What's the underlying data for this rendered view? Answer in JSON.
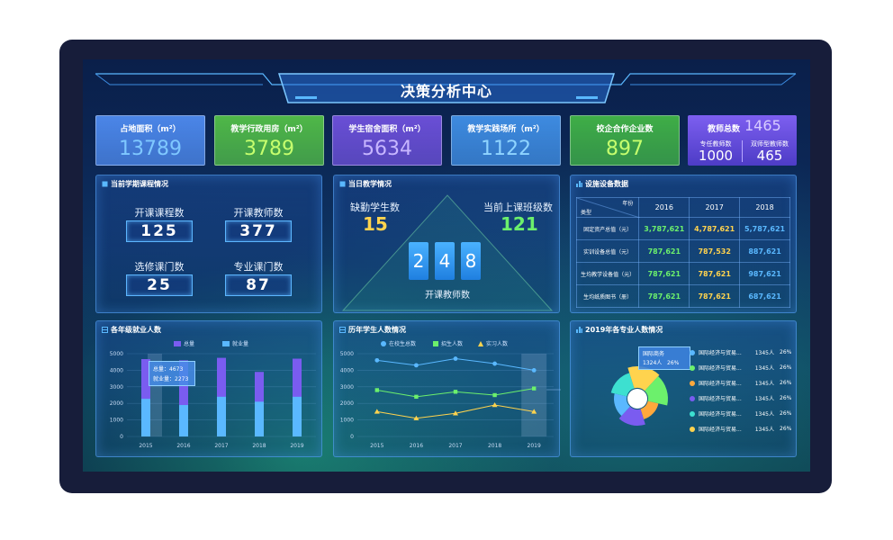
{
  "header": {
    "title": "决策分析中心"
  },
  "stats": [
    {
      "label": "占地面积（m²）",
      "value": "13789",
      "bg": "#4b86e8",
      "valueColor": "#7fc8ff"
    },
    {
      "label": "教学行政用房（m²）",
      "value": "3789",
      "bg": "#4fb848",
      "valueColor": "#c6ff6e"
    },
    {
      "label": "学生宿舍面积（m²）",
      "value": "5634",
      "bg": "#6a4fd6",
      "valueColor": "#c7b6ff"
    },
    {
      "label": "教学实践场所（m²）",
      "value": "1122",
      "bg": "#3e8be0",
      "valueColor": "#8fd4ff"
    },
    {
      "label": "校企合作企业数",
      "value": "897",
      "bg": "#3fae47",
      "valueColor": "#c6ff6e"
    }
  ],
  "teachers": {
    "label": "教师总数",
    "total": "1465",
    "full_label": "专任教师数",
    "full": "1000",
    "dual_label": "双师型教师数",
    "dual": "465"
  },
  "courses": {
    "title": "当前学期课程情况",
    "items": [
      {
        "label": "开课课程数",
        "value": "125"
      },
      {
        "label": "开课教师数",
        "value": "377"
      },
      {
        "label": "选修课门数",
        "value": "25"
      },
      {
        "label": "专业课门数",
        "value": "87"
      }
    ]
  },
  "daily": {
    "title": "当日教学情况",
    "absent_label": "缺勤学生数",
    "absent": "15",
    "classes_label": "当前上课班级数",
    "classes": "121",
    "digits": [
      "2",
      "4",
      "8"
    ],
    "teachers_label": "开课教师数"
  },
  "equipment": {
    "title": "设施设备数据",
    "corner_year": "年份",
    "corner_type": "类型",
    "years": [
      "2016",
      "2017",
      "2018"
    ],
    "rows": [
      {
        "name": "固定资产总值（元）",
        "values": [
          "3,787,621",
          "4,787,621",
          "5,787,621"
        ]
      },
      {
        "name": "实训设备总值（元）",
        "values": [
          "787,621",
          "787,532",
          "887,621"
        ]
      },
      {
        "name": "生均教学设备值（元）",
        "values": [
          "787,621",
          "787,621",
          "987,621"
        ]
      },
      {
        "name": "生均纸质图书（册）",
        "values": [
          "787,621",
          "787,621",
          "687,621"
        ]
      }
    ],
    "colors": [
      "#6cf06c",
      "#ffd34e",
      "#5ab8ff"
    ]
  },
  "employment": {
    "title": "各年级就业人数",
    "legend": [
      "总量",
      "就业量"
    ],
    "tooltip": {
      "total": "总量：4673",
      "employed": "就业量：2273"
    }
  },
  "history": {
    "title": "历年学生人数情况",
    "legend": [
      "在校生总数",
      "招生人数",
      "实习人数"
    ]
  },
  "majors": {
    "title": "2019年各专业人数情况",
    "tooltip": {
      "name": "国际商务",
      "count": "1324人",
      "pct": "26%"
    },
    "items": [
      {
        "name": "国际经济与贸易...",
        "count": "1345人",
        "pct": "26%",
        "color": "#5ab8ff"
      },
      {
        "name": "国际经济与贸易...",
        "count": "1345人",
        "pct": "26%",
        "color": "#6cf06c"
      },
      {
        "name": "国际经济与贸易...",
        "count": "1345人",
        "pct": "26%",
        "color": "#ffa83c"
      },
      {
        "name": "国际经济与贸易...",
        "count": "1345人",
        "pct": "26%",
        "color": "#7a5cf0"
      },
      {
        "name": "国际经济与贸易...",
        "count": "1345人",
        "pct": "26%",
        "color": "#3de0d0"
      },
      {
        "name": "国际经济与贸易...",
        "count": "1345人",
        "pct": "26%",
        "color": "#ffd34e"
      }
    ]
  },
  "chart_data": [
    {
      "type": "bar",
      "categories": [
        "2015",
        "2016",
        "2017",
        "2018",
        "2019"
      ],
      "series": [
        {
          "name": "总量",
          "values": [
            4673,
            4600,
            4750,
            3900,
            4700
          ]
        },
        {
          "name": "就业量",
          "values": [
            2273,
            1900,
            2400,
            2100,
            2400
          ]
        }
      ],
      "ylim": [
        0,
        5000
      ],
      "yticks": [
        0,
        1000,
        2000,
        3000,
        4000,
        5000
      ]
    },
    {
      "type": "line",
      "categories": [
        "2015",
        "2016",
        "2017",
        "2018",
        "2019"
      ],
      "series": [
        {
          "name": "在校生总数",
          "values": [
            4600,
            4300,
            4700,
            4400,
            4000
          ]
        },
        {
          "name": "招生人数",
          "values": [
            2800,
            2400,
            2700,
            2500,
            2900
          ]
        },
        {
          "name": "实习人数",
          "values": [
            1500,
            1100,
            1400,
            1900,
            1500
          ]
        }
      ],
      "ylim": [
        0,
        5000
      ],
      "yticks": [
        0,
        1000,
        2000,
        3000,
        4000,
        5000
      ]
    },
    {
      "type": "pie",
      "labels": [
        "国际商务",
        "国际经济与贸易...",
        "国际经济与贸易...",
        "国际经济与贸易...",
        "国际经济与贸易...",
        "国际经济与贸易..."
      ],
      "values": [
        26,
        26,
        26,
        26,
        26,
        26
      ]
    }
  ]
}
